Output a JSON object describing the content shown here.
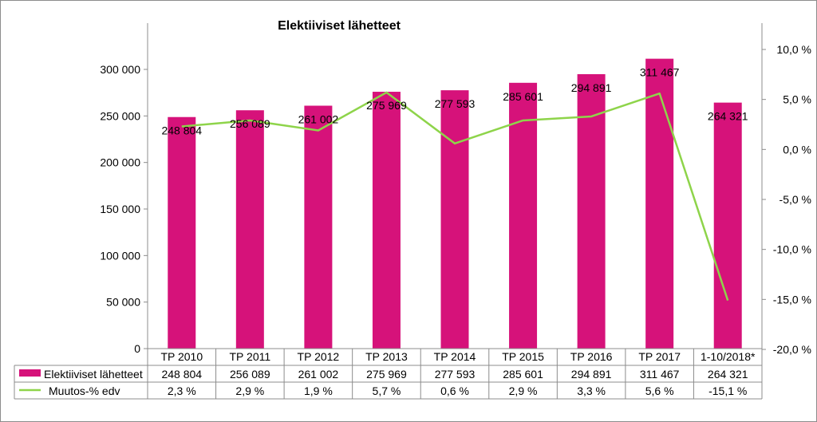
{
  "chart_data": {
    "type": "bar",
    "title": "Elektiiviset lähetteet",
    "categories": [
      "TP 2010",
      "TP 2011",
      "TP 2012",
      "TP 2013",
      "TP 2014",
      "TP 2015",
      "TP 2016",
      "TP 2017",
      "1-10/2018*"
    ],
    "series": [
      {
        "name": "Elektiiviset lähetteet",
        "type": "bar",
        "axis": "left",
        "color": "#D6127A",
        "values": [
          248804,
          256089,
          261002,
          275969,
          277593,
          285601,
          294891,
          311467,
          264321
        ],
        "labels": [
          "248 804",
          "256 089",
          "261 002",
          "275 969",
          "277 593",
          "285 601",
          "294 891",
          "311 467",
          "264 321"
        ]
      },
      {
        "name": "Muutos-% edv",
        "type": "line",
        "axis": "right",
        "color": "#8ED44A",
        "values": [
          2.3,
          2.9,
          1.9,
          5.7,
          0.6,
          2.9,
          3.3,
          5.6,
          -15.1
        ],
        "labels": [
          "2,3 %",
          "2,9 %",
          "1,9 %",
          "5,7 %",
          "0,6 %",
          "2,9 %",
          "3,3 %",
          "5,6 %",
          "-15,1 %"
        ]
      }
    ],
    "y_left": {
      "ylim": [
        0,
        300000
      ],
      "ticks": [
        0,
        50000,
        100000,
        150000,
        200000,
        250000,
        300000
      ],
      "tick_labels": [
        "0",
        "50 000",
        "100 000",
        "150 000",
        "200 000",
        "250 000",
        "300 000"
      ]
    },
    "y_right": {
      "ylim": [
        -20,
        10
      ],
      "ticks": [
        -20,
        -15,
        -10,
        -5,
        0,
        5,
        10
      ],
      "tick_labels": [
        "-20,0 %",
        "-15,0 %",
        "-10,0 %",
        "-5,0 %",
        "0,0 %",
        "5,0 %",
        "10,0 %"
      ]
    },
    "grid": false,
    "legend": "data-table"
  }
}
